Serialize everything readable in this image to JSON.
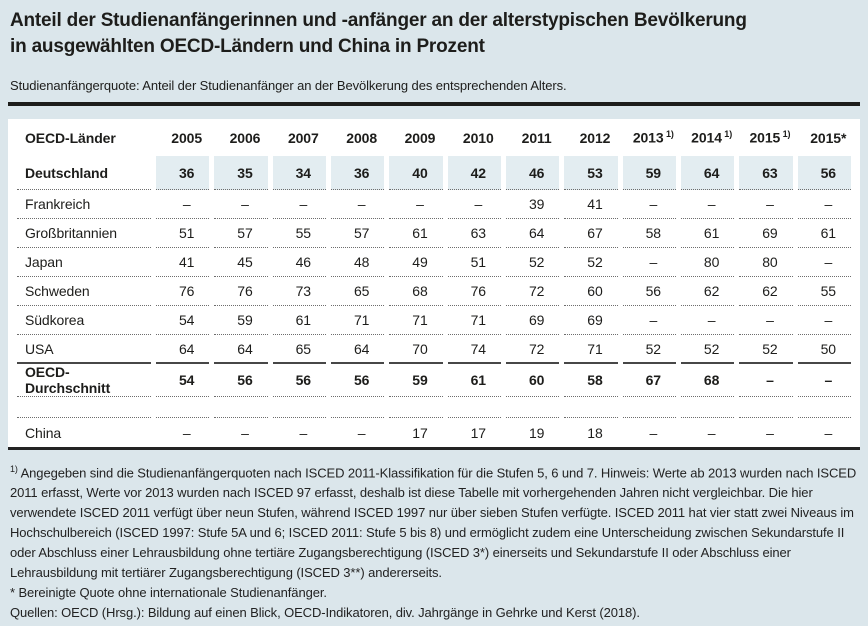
{
  "header": {
    "title_line1": "Anteil der Studienanfängerinnen und -anfänger an der alterstypischen Bevölkerung",
    "title_line2": "in ausgewählten OECD-Ländern und China in Prozent",
    "subtitle": "Studienanfängerquote: Anteil der Studienanfänger an der Bevölkerung des entsprechenden Alters."
  },
  "table": {
    "columns": [
      {
        "label": "OECD-Länder",
        "sup": ""
      },
      {
        "label": "2005",
        "sup": ""
      },
      {
        "label": "2006",
        "sup": ""
      },
      {
        "label": "2007",
        "sup": ""
      },
      {
        "label": "2008",
        "sup": ""
      },
      {
        "label": "2009",
        "sup": ""
      },
      {
        "label": "2010",
        "sup": ""
      },
      {
        "label": "2011",
        "sup": ""
      },
      {
        "label": "2012",
        "sup": ""
      },
      {
        "label": "2013",
        "sup": "1)"
      },
      {
        "label": "2014",
        "sup": "1)"
      },
      {
        "label": "2015",
        "sup": "1)"
      },
      {
        "label": "2015*",
        "sup": ""
      }
    ],
    "rows": [
      {
        "label": "Deutschland",
        "style": "highlight",
        "values": [
          "36",
          "35",
          "34",
          "36",
          "40",
          "42",
          "46",
          "53",
          "59",
          "64",
          "63",
          "56"
        ]
      },
      {
        "label": "Frankreich",
        "style": "country",
        "values": [
          "–",
          "–",
          "–",
          "–",
          "–",
          "–",
          "39",
          "41",
          "–",
          "–",
          "–",
          "–"
        ]
      },
      {
        "label": "Großbritannien",
        "style": "country",
        "values": [
          "51",
          "57",
          "55",
          "57",
          "61",
          "63",
          "64",
          "67",
          "58",
          "61",
          "69",
          "61"
        ]
      },
      {
        "label": "Japan",
        "style": "country",
        "values": [
          "41",
          "45",
          "46",
          "48",
          "49",
          "51",
          "52",
          "52",
          "–",
          "80",
          "80",
          "–"
        ]
      },
      {
        "label": "Schweden",
        "style": "country",
        "values": [
          "76",
          "76",
          "73",
          "65",
          "68",
          "76",
          "72",
          "60",
          "56",
          "62",
          "62",
          "55"
        ]
      },
      {
        "label": "Südkorea",
        "style": "country",
        "values": [
          "54",
          "59",
          "61",
          "71",
          "71",
          "71",
          "69",
          "69",
          "–",
          "–",
          "–",
          "–"
        ]
      },
      {
        "label": "USA",
        "style": "country-solid-bottom",
        "values": [
          "64",
          "64",
          "65",
          "64",
          "70",
          "74",
          "72",
          "71",
          "52",
          "52",
          "52",
          "50"
        ]
      },
      {
        "label": "OECD-Durchschnitt",
        "style": "average",
        "values": [
          "54",
          "56",
          "56",
          "56",
          "59",
          "61",
          "60",
          "58",
          "67",
          "68",
          "–",
          "–"
        ]
      },
      {
        "label": "",
        "style": "spacer",
        "values": [
          "",
          "",
          "",
          "",
          "",
          "",
          "",
          "",
          "",
          "",
          "",
          ""
        ]
      },
      {
        "label": "China",
        "style": "last",
        "values": [
          "–",
          "–",
          "–",
          "–",
          "17",
          "17",
          "19",
          "18",
          "–",
          "–",
          "–",
          "–"
        ]
      }
    ]
  },
  "footnotes": {
    "fn1_marker": "1)",
    "fn1_text": "Angegeben sind die Studienanfängerquoten nach ISCED 2011-Klassifikation für die Stufen 5, 6 und 7. Hinweis: Werte ab 2013 wurden nach ISCED 2011 erfasst, Werte vor 2013 wurden nach ISCED 97 erfasst, deshalb ist diese Tabelle mit vorhergehenden Jahren nicht vergleichbar. Die hier verwendete ISCED 2011 verfügt über neun Stufen, während ISCED 1997 nur über sieben Stufen verfügte. ISCED 2011 hat vier statt zwei Niveaus im Hochschulbereich (ISCED 1997: Stufe 5A und 6; ISCED 2011: Stufe 5 bis 8) und ermöglicht zudem eine Unterscheidung zwischen Sekundarstufe II oder Abschluss einer Lehrausbildung ohne tertiäre Zugangsberechtigung (ISCED 3*) einerseits und Sekundarstufe II oder Abschluss einer Lehrausbildung mit tertiärer Zugangsberechtigung (ISCED 3**) andererseits.",
    "fn2_text": "* Bereinigte Quote ohne internationale Studienanfänger.",
    "source": "Quellen: OECD (Hrsg.): Bildung auf einen Blick, OECD-Indikatoren, div. Jahrgänge in Gehrke und Kerst (2018)."
  },
  "colors": {
    "page_bg": "#dbe6eb",
    "card_bg": "#ffffff",
    "highlight_row_bg": "#e3edf1",
    "text": "#1d1d1b"
  }
}
